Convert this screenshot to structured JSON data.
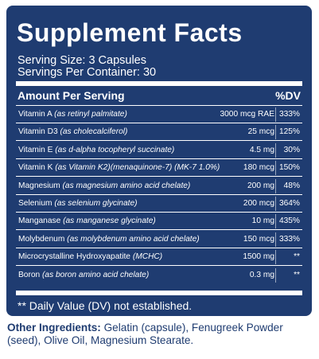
{
  "panel": {
    "title": "Supplement Facts",
    "serving_size": "Serving Size: 3 Capsules",
    "servings_per_container": "Servings Per Container: 30",
    "header_left": "Amount Per Serving",
    "header_right": "%DV",
    "rows": [
      {
        "name": "Vitamin A",
        "detail": "(as retinyl palmitate)",
        "amount": "3000 mcg RAE",
        "dv": "333%"
      },
      {
        "name": "Vitamin D3",
        "detail": "(as cholecalciferol)",
        "amount": "25 mcg",
        "dv": "125%"
      },
      {
        "name": "Vitamin E",
        "detail": "(as d-alpha tocopheryl succinate)",
        "amount": "4.5 mg",
        "dv": "30%"
      },
      {
        "name": "Vitamin K",
        "detail": "(as Vitamin K2)(menaquinone-7) (MK-7 1.0%)",
        "amount": "180 mcg",
        "dv": "150%"
      },
      {
        "name": "Magnesium",
        "detail": "(as magnesium amino acid chelate)",
        "amount": "200 mg",
        "dv": "48%"
      },
      {
        "name": "Selenium",
        "detail": "(as selenium glycinate)",
        "amount": "200 mcg",
        "dv": "364%"
      },
      {
        "name": "Manganase",
        "detail": "(as manganese glycinate)",
        "amount": "10 mg",
        "dv": "435%"
      },
      {
        "name": "Molybdenum",
        "detail": "(as molybdenum amino acid chelate)",
        "amount": "150 mcg",
        "dv": "333%"
      },
      {
        "name": "Microcrystalline Hydroxyapatite",
        "detail": "(MCHC)",
        "amount": "1500 mg",
        "dv": "**"
      },
      {
        "name": "Boron",
        "detail": "(as boron amino acid chelate)",
        "amount": "0.3 mg",
        "dv": "**"
      }
    ],
    "footnote": "** Daily Value (DV) not established."
  },
  "other_ingredients": {
    "label": "Other Ingredients:",
    "text": " Gelatin (capsule), Fenugreek Powder (seed), Olive Oil, Magnesium Stearate."
  },
  "colors": {
    "panel_background": "#1f3c71",
    "text_on_panel": "#ffffff",
    "other_ingredients_text": "#1f3c71"
  }
}
